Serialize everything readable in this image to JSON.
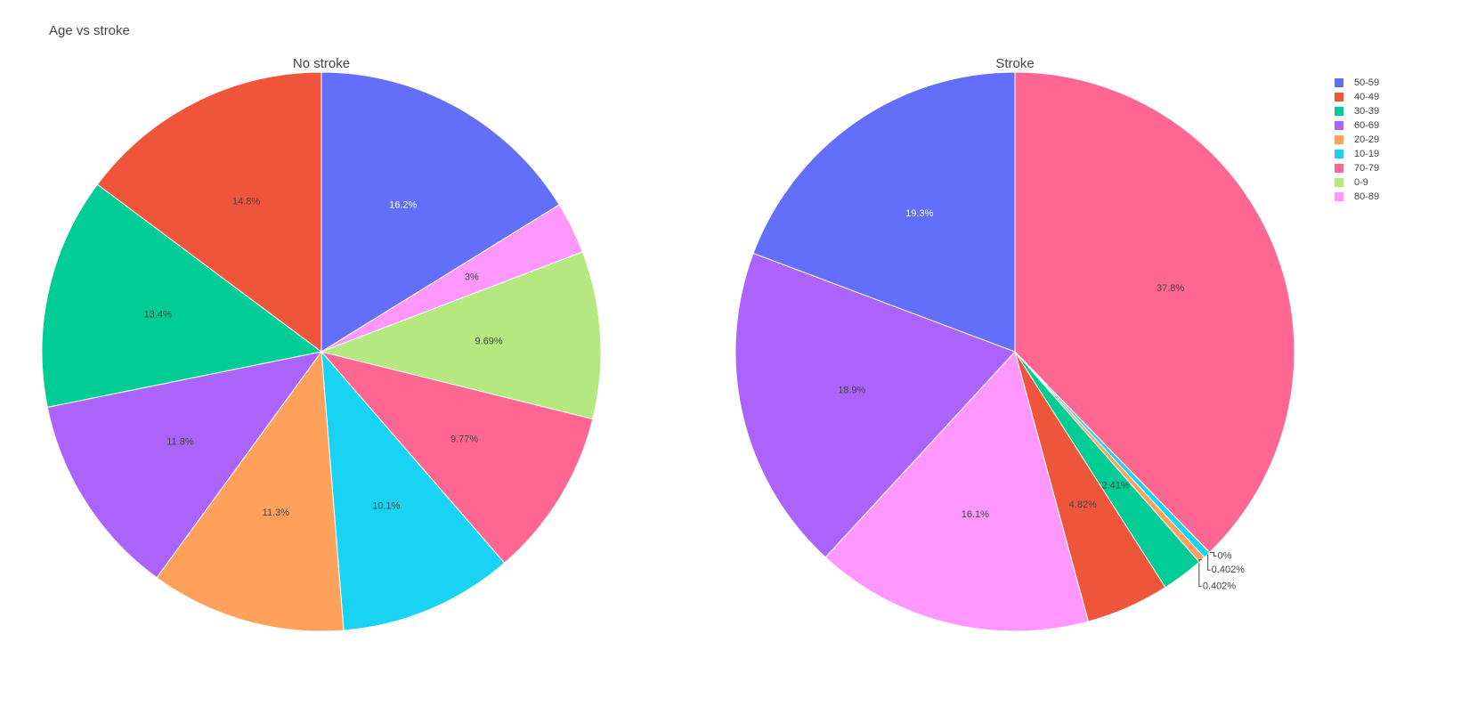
{
  "title": "Age vs stroke",
  "chart_data": [
    {
      "type": "pie",
      "title": "No stroke",
      "categories": [
        "50-59",
        "80-89",
        "0-9",
        "70-79",
        "10-19",
        "20-29",
        "60-69",
        "30-39",
        "40-49"
      ],
      "values": [
        16.2,
        3,
        9.69,
        9.77,
        10.1,
        11.3,
        11.8,
        13.4,
        14.8
      ],
      "value_labels": [
        "16.2%",
        "3%",
        "9.69%",
        "9.77%",
        "10.1%",
        "11.3%",
        "11.8%",
        "13.4%",
        "14.8%"
      ],
      "colors": [
        "#636efa",
        "#ff97ff",
        "#b6e880",
        "#ff6692",
        "#19d3f3",
        "#ffa15a",
        "#ab63fa",
        "#00cc96",
        "#ef553b"
      ],
      "direction": "clockwise",
      "legend": "right"
    },
    {
      "type": "pie",
      "title": "Stroke",
      "categories": [
        "70-79",
        "0-9",
        "10-19",
        "20-29",
        "30-39",
        "40-49",
        "80-89",
        "60-69",
        "50-59"
      ],
      "values": [
        37.8,
        0,
        0.402,
        0.402,
        2.41,
        4.82,
        16.1,
        18.9,
        19.3
      ],
      "value_labels": [
        "37.8%",
        "0%",
        "0.402%",
        "0.402%",
        "2.41%",
        "4.82%",
        "16.1%",
        "18.9%",
        "19.3%"
      ],
      "colors": [
        "#ff6692",
        "#b6e880",
        "#19d3f3",
        "#ffa15a",
        "#00cc96",
        "#ef553b",
        "#ff97ff",
        "#ab63fa",
        "#636efa"
      ],
      "direction": "clockwise"
    }
  ]
}
